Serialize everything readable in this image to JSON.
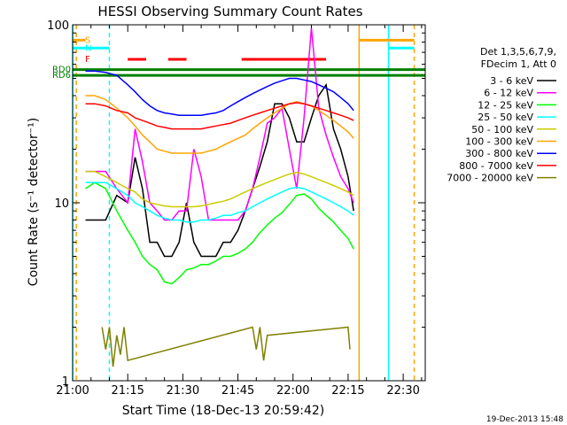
{
  "chart_data": {
    "type": "line",
    "title": "HESSI Observing Summary Count Rates",
    "xlabel": "Start Time (18-Dec-13 20:59:42)",
    "ylabel": "Count Rate (s⁻¹ detector⁻¹)",
    "yscale": "log",
    "ylim": [
      1,
      100
    ],
    "xlim_minutes": [
      0,
      96
    ],
    "x_ticks": [
      "21:00",
      "21:15",
      "21:30",
      "21:45",
      "22:00",
      "22:15",
      "22:30"
    ],
    "y_ticks": [
      "1",
      "10",
      "100"
    ],
    "timestamp": "19-Dec-2013 15:48",
    "legend_header": [
      "Det 1,3,5,6,7,9,",
      "FDecim 1, Att 0"
    ],
    "series": [
      {
        "name": "3 - 6 keV",
        "color": "#000000",
        "x": [
          3.5,
          6,
          9,
          12,
          15,
          17,
          19,
          21,
          23,
          25,
          27,
          29,
          31,
          33,
          35,
          37,
          39,
          41,
          43,
          45,
          47,
          49,
          51,
          53,
          55,
          57,
          59,
          61,
          63,
          65,
          67,
          69,
          71,
          73,
          75,
          76.5
        ],
        "y": [
          8,
          8,
          8,
          11,
          10,
          18,
          12,
          6,
          6,
          5,
          5,
          6,
          10,
          6,
          5,
          5,
          5,
          6,
          6,
          7,
          9,
          12,
          16,
          22,
          36,
          36,
          30,
          22,
          22,
          30,
          40,
          46,
          26,
          20,
          14,
          9
        ]
      },
      {
        "name": "6 - 12 keV",
        "color": "#ff00ff",
        "x": [
          3.5,
          6,
          9,
          12,
          15,
          17,
          19,
          21,
          23,
          25,
          27,
          29,
          31,
          33,
          35,
          37,
          39,
          41,
          43,
          45,
          47,
          49,
          51,
          53,
          55,
          57,
          59,
          61,
          63,
          65,
          67,
          69,
          71,
          73,
          75,
          76.5
        ],
        "y": [
          15,
          15,
          15,
          12,
          10,
          26,
          17,
          10,
          9,
          8,
          8,
          9,
          9,
          20,
          14,
          8,
          8,
          8,
          8,
          8,
          9,
          12,
          18,
          28,
          30,
          34,
          20,
          12,
          30,
          96,
          34,
          24,
          18,
          14,
          12,
          10
        ]
      },
      {
        "name": "12 - 25 keV",
        "color": "#00ff00",
        "x": [
          3.5,
          6,
          9,
          12,
          15,
          17,
          19,
          21,
          23,
          25,
          27,
          29,
          31,
          33,
          35,
          37,
          39,
          41,
          43,
          45,
          47,
          49,
          51,
          53,
          55,
          57,
          59,
          61,
          63,
          65,
          67,
          69,
          71,
          73,
          75,
          76.5
        ],
        "y": [
          12,
          13,
          12,
          9,
          7,
          6,
          5,
          4.5,
          4.2,
          3.6,
          3.5,
          3.8,
          4.2,
          4.3,
          4.5,
          4.5,
          4.7,
          5,
          5,
          5.2,
          5.5,
          6,
          6.8,
          7.5,
          8.2,
          8.8,
          9.8,
          11,
          11.2,
          10.5,
          9.3,
          8.5,
          7.8,
          7,
          6.3,
          5.5
        ]
      },
      {
        "name": "25 - 50 keV",
        "color": "#00ffff",
        "x": [
          3.5,
          6,
          9,
          12,
          15,
          17,
          19,
          21,
          23,
          25,
          27,
          29,
          31,
          33,
          35,
          37,
          39,
          41,
          43,
          45,
          47,
          49,
          51,
          53,
          55,
          57,
          59,
          61,
          63,
          65,
          67,
          69,
          71,
          73,
          75,
          76.5
        ],
        "y": [
          13,
          13,
          13,
          12,
          11,
          10,
          9.5,
          9,
          8.5,
          8.2,
          8,
          8,
          7.8,
          7.8,
          8,
          8,
          8.2,
          8.5,
          8.5,
          8.8,
          9,
          9.5,
          10,
          10.5,
          11,
          11.5,
          12,
          12.2,
          12,
          11.5,
          11,
          10.5,
          10,
          9.5,
          9,
          8.5
        ]
      },
      {
        "name": "50 - 100 keV",
        "color": "#cccc00",
        "x": [
          3.5,
          6,
          9,
          12,
          15,
          17,
          19,
          21,
          23,
          25,
          27,
          29,
          31,
          33,
          35,
          37,
          39,
          41,
          43,
          45,
          47,
          49,
          51,
          53,
          55,
          57,
          59,
          61,
          63,
          65,
          67,
          69,
          71,
          73,
          75,
          76.5
        ],
        "y": [
          15,
          15,
          14,
          13,
          12,
          11.5,
          10.5,
          10,
          9.8,
          9.6,
          9.5,
          9.5,
          9.5,
          9.5,
          9.6,
          9.8,
          10,
          10.2,
          10.5,
          11,
          11.5,
          12,
          12.5,
          13,
          13.5,
          14,
          14.5,
          14.8,
          14.5,
          14,
          13.5,
          13,
          12.5,
          12,
          11.5,
          11
        ]
      },
      {
        "name": "100 - 300 keV",
        "color": "#ffa500",
        "x": [
          3.5,
          6,
          9,
          12,
          15,
          17,
          19,
          21,
          23,
          25,
          27,
          29,
          31,
          33,
          35,
          37,
          39,
          41,
          43,
          45,
          47,
          49,
          51,
          53,
          55,
          57,
          59,
          61,
          63,
          65,
          67,
          69,
          71,
          73,
          75,
          76.5
        ],
        "y": [
          40,
          40,
          38,
          34,
          30,
          27,
          24,
          22,
          20,
          19.5,
          19,
          19,
          19,
          19,
          19,
          19.5,
          20,
          21,
          22,
          23,
          24,
          26,
          28,
          30,
          32,
          34,
          36,
          37,
          36,
          35,
          33,
          31,
          29,
          27,
          25,
          23
        ]
      },
      {
        "name": "300 - 800 keV",
        "color": "#0000ff",
        "x": [
          3.5,
          6,
          9,
          12,
          15,
          17,
          19,
          21,
          23,
          25,
          27,
          29,
          31,
          33,
          35,
          37,
          39,
          41,
          43,
          45,
          47,
          49,
          51,
          53,
          55,
          57,
          59,
          61,
          63,
          65,
          67,
          69,
          71,
          73,
          75,
          76.5
        ],
        "y": [
          55,
          55,
          54,
          52,
          46,
          42,
          38,
          35,
          33,
          32,
          31.5,
          31,
          31,
          31,
          31,
          31.5,
          32,
          33,
          35,
          37,
          39,
          41,
          43,
          45,
          47,
          48.5,
          50,
          50,
          49,
          48,
          46,
          44,
          42,
          39,
          36,
          33
        ]
      },
      {
        "name": "800 - 7000 keV",
        "color": "#ff0000",
        "x": [
          3.5,
          6,
          9,
          12,
          15,
          17,
          19,
          21,
          23,
          25,
          27,
          29,
          31,
          33,
          35,
          37,
          39,
          41,
          43,
          45,
          47,
          49,
          51,
          53,
          55,
          57,
          59,
          61,
          63,
          65,
          67,
          69,
          71,
          73,
          75,
          76.5
        ],
        "y": [
          36,
          36,
          35,
          33,
          32,
          30,
          29,
          28,
          27,
          26.5,
          26,
          26,
          26,
          26,
          26,
          26.5,
          27,
          27.5,
          28,
          29,
          30,
          31,
          32,
          33,
          34,
          35,
          36,
          36.5,
          36,
          35,
          34,
          33,
          32,
          31,
          30,
          29
        ]
      },
      {
        "name": "7000 - 20000 keV",
        "color": "#808000",
        "x": [
          8,
          9,
          10,
          11,
          12,
          13,
          14,
          15,
          49,
          50,
          51,
          52,
          53,
          75,
          75.5
        ],
        "y": [
          2,
          1.5,
          2,
          1.2,
          1.8,
          1.4,
          2,
          1.3,
          2,
          1.5,
          2,
          1.3,
          1.8,
          2,
          1.5
        ]
      }
    ],
    "vlines": [
      {
        "x": 0,
        "color": "#00ffff",
        "style": "solid"
      },
      {
        "x": 1,
        "color": "#ffa500",
        "style": "dashed"
      },
      {
        "x": 10,
        "color": "#00ffff",
        "style": "dashed"
      },
      {
        "x": 78,
        "color": "#ffa500",
        "style": "solid"
      },
      {
        "x": 86,
        "color": "#00ffff",
        "style": "solid"
      },
      {
        "x": 93,
        "color": "#ffa500",
        "style": "dashed"
      }
    ],
    "flags": [
      {
        "label": "S",
        "color": "#ffa500",
        "y": 82,
        "segments": [
          [
            0,
            3.5
          ],
          [
            78,
            93
          ]
        ]
      },
      {
        "label": "N",
        "color": "#00ffff",
        "y": 74,
        "segments": [
          [
            0,
            10
          ],
          [
            86,
            93
          ]
        ]
      },
      {
        "label": "F",
        "color": "#ff0000",
        "y": 64,
        "segments": [
          [
            15,
            20
          ],
          [
            26,
            31
          ],
          [
            46,
            69
          ]
        ]
      },
      {
        "label": "RD0",
        "color": "#008000",
        "y": 56,
        "segments": [
          [
            0,
            96
          ]
        ]
      },
      {
        "label": "RD6",
        "color": "#008000",
        "y": 52,
        "segments": [
          [
            0,
            96
          ]
        ]
      }
    ]
  }
}
